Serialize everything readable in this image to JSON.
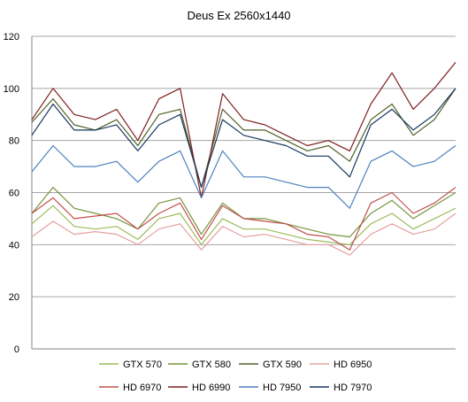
{
  "chart_data": {
    "type": "line",
    "title": "Deus Ex 2560x1440",
    "xlabel": "",
    "ylabel": "",
    "ylim": [
      0,
      120
    ],
    "yticks": [
      0,
      20,
      40,
      60,
      80,
      100,
      120
    ],
    "grid": true,
    "legend_position": "bottom",
    "x": [
      0,
      5,
      10,
      15,
      20,
      25,
      30,
      35,
      40,
      45,
      50,
      55,
      60,
      65,
      70,
      75,
      80,
      85,
      90,
      95,
      100
    ],
    "series": [
      {
        "name": "GTX 570",
        "color": "#9bbb59",
        "values": [
          48,
          55,
          47,
          46,
          47,
          42,
          50,
          52,
          40,
          50,
          46,
          46,
          44,
          42,
          41,
          40,
          48,
          52,
          46,
          50,
          54
        ]
      },
      {
        "name": "GTX 580",
        "color": "#77933c",
        "values": [
          52,
          62,
          54,
          52,
          50,
          46,
          56,
          58,
          44,
          56,
          50,
          50,
          48,
          46,
          44,
          43,
          52,
          57,
          50,
          55,
          60
        ]
      },
      {
        "name": "GTX 590",
        "color": "#4f6228",
        "values": [
          87,
          96,
          86,
          84,
          88,
          78,
          90,
          92,
          62,
          92,
          84,
          84,
          80,
          76,
          78,
          72,
          88,
          94,
          82,
          88,
          100
        ]
      },
      {
        "name": "HD 6950",
        "color": "#e6a0a0",
        "values": [
          43,
          49,
          44,
          45,
          44,
          40,
          46,
          48,
          38,
          47,
          43,
          44,
          42,
          40,
          40,
          36,
          44,
          48,
          44,
          46,
          52
        ]
      },
      {
        "name": "HD 6970",
        "color": "#c0504d",
        "values": [
          52,
          58,
          50,
          51,
          52,
          46,
          52,
          56,
          42,
          55,
          50,
          49,
          48,
          44,
          43,
          38,
          56,
          60,
          52,
          56,
          62
        ]
      },
      {
        "name": "HD 6990",
        "color": "#7f1f1f",
        "values": [
          88,
          100,
          90,
          88,
          92,
          80,
          96,
          100,
          58,
          98,
          88,
          86,
          82,
          78,
          80,
          76,
          94,
          106,
          92,
          100,
          110
        ]
      },
      {
        "name": "HD 7950",
        "color": "#4f81bd",
        "values": [
          68,
          78,
          70,
          70,
          72,
          64,
          72,
          76,
          58,
          76,
          66,
          66,
          64,
          62,
          62,
          54,
          72,
          76,
          70,
          72,
          78
        ]
      },
      {
        "name": "HD 7970",
        "color": "#17375e",
        "values": [
          82,
          94,
          84,
          84,
          86,
          76,
          86,
          90,
          62,
          88,
          82,
          80,
          78,
          74,
          74,
          66,
          86,
          92,
          84,
          90,
          100
        ]
      }
    ]
  }
}
